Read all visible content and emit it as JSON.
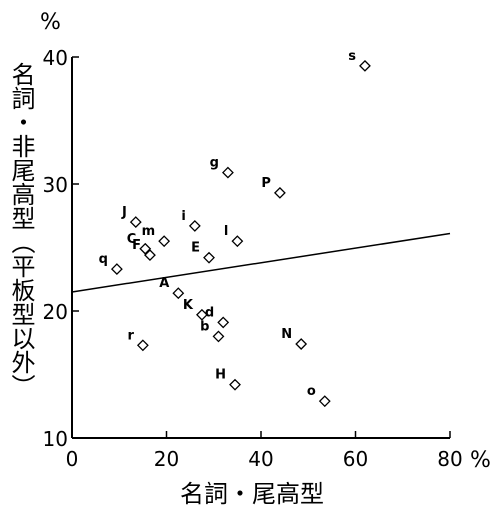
{
  "chart_data": {
    "type": "scatter",
    "xlabel": "名詞・尾高型",
    "ylabel": "名詞・非尾高型（平板型以外）",
    "x_unit": "%",
    "y_unit": "%",
    "xlim": [
      0,
      80
    ],
    "ylim": [
      10,
      40
    ],
    "x_ticks": [
      "0",
      "20",
      "40",
      "60",
      "80"
    ],
    "y_ticks": [
      "10",
      "20",
      "30",
      "40"
    ],
    "grid": false,
    "trend_line": {
      "x": [
        0,
        80
      ],
      "y": [
        21.5,
        26.1
      ]
    },
    "points": [
      {
        "label": "s",
        "x": 62,
        "y": 39.3
      },
      {
        "label": "g",
        "x": 33,
        "y": 30.9
      },
      {
        "label": "P",
        "x": 44,
        "y": 29.3
      },
      {
        "label": "J",
        "x": 13.5,
        "y": 27.0
      },
      {
        "label": "i",
        "x": 26,
        "y": 26.7
      },
      {
        "label": "m",
        "x": 19.5,
        "y": 25.5
      },
      {
        "label": "l",
        "x": 35,
        "y": 25.5
      },
      {
        "label": "C",
        "x": 15.5,
        "y": 24.9
      },
      {
        "label": "F",
        "x": 16.5,
        "y": 24.4
      },
      {
        "label": "E",
        "x": 29,
        "y": 24.2
      },
      {
        "label": "q",
        "x": 9.5,
        "y": 23.3
      },
      {
        "label": "A",
        "x": 22.5,
        "y": 21.4
      },
      {
        "label": "K",
        "x": 27.5,
        "y": 19.7
      },
      {
        "label": "d",
        "x": 32,
        "y": 19.1
      },
      {
        "label": "b",
        "x": 31,
        "y": 18.0
      },
      {
        "label": "r",
        "x": 15,
        "y": 17.3
      },
      {
        "label": "N",
        "x": 48.5,
        "y": 17.4
      },
      {
        "label": "H",
        "x": 34.5,
        "y": 14.2
      },
      {
        "label": "o",
        "x": 53.5,
        "y": 12.9
      }
    ]
  }
}
